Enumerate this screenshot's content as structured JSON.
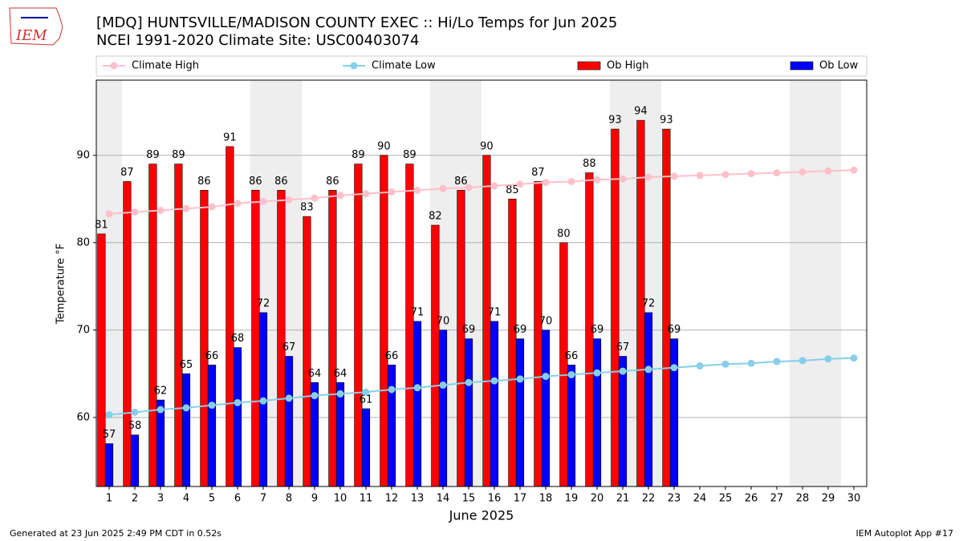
{
  "logo_text": "IEM",
  "footer_left": "Generated at 23 Jun 2025 2:49 PM CDT in 0.52s",
  "footer_right": "IEM Autoplot App #17",
  "chart_data": {
    "type": "bar",
    "title": "[MDQ] HUNTSVILLE/MADISON COUNTY EXEC :: Hi/Lo Temps for Jun 2025",
    "subtitle": "NCEI 1991-2020 Climate Site: USC00403074",
    "x_label": "June 2025",
    "y_label": "Temperature °F",
    "x": [
      1,
      2,
      3,
      4,
      5,
      6,
      7,
      8,
      9,
      10,
      11,
      12,
      13,
      14,
      15,
      16,
      17,
      18,
      19,
      20,
      21,
      22,
      23,
      24,
      25,
      26,
      27,
      28,
      29,
      30
    ],
    "xlim": [
      0.5,
      30.5
    ],
    "xticks": [
      1,
      2,
      3,
      4,
      5,
      6,
      7,
      8,
      9,
      10,
      11,
      12,
      13,
      14,
      15,
      16,
      17,
      18,
      19,
      20,
      21,
      22,
      23,
      24,
      25,
      26,
      27,
      28,
      29,
      30
    ],
    "ylim": [
      52.1,
      98.6
    ],
    "yticks": [
      60,
      70,
      80,
      90
    ],
    "grid": true,
    "legend_position": "top",
    "series": [
      {
        "name": "Climate High",
        "type": "line",
        "color": "#ffc0cb",
        "values": [
          83.3,
          83.5,
          83.7,
          83.9,
          84.1,
          84.5,
          84.7,
          84.9,
          85.1,
          85.4,
          85.6,
          85.8,
          86.0,
          86.2,
          86.3,
          86.5,
          86.7,
          86.9,
          87.0,
          87.2,
          87.3,
          87.5,
          87.6,
          87.7,
          87.8,
          87.9,
          88.0,
          88.1,
          88.2,
          88.3
        ]
      },
      {
        "name": "Climate Low",
        "type": "line",
        "color": "#87ceeb",
        "values": [
          60.3,
          60.6,
          60.9,
          61.1,
          61.4,
          61.7,
          61.9,
          62.2,
          62.5,
          62.7,
          62.9,
          63.2,
          63.4,
          63.7,
          64.0,
          64.2,
          64.4,
          64.7,
          64.9,
          65.1,
          65.3,
          65.5,
          65.7,
          65.9,
          66.1,
          66.2,
          66.4,
          66.5,
          66.7,
          66.8
        ]
      },
      {
        "name": "Ob High",
        "type": "bar",
        "color": "#ff0000",
        "values": [
          81,
          87,
          89,
          89,
          86,
          91,
          86,
          86,
          83,
          86,
          89,
          90,
          89,
          82,
          86,
          90,
          85,
          87,
          80,
          88,
          93,
          94,
          93,
          null,
          null,
          null,
          null,
          null,
          null,
          null
        ]
      },
      {
        "name": "Ob Low",
        "type": "bar",
        "color": "#0000ff",
        "values": [
          57,
          58,
          62,
          65,
          66,
          68,
          72,
          67,
          64,
          64,
          61,
          66,
          71,
          70,
          69,
          71,
          69,
          70,
          66,
          69,
          67,
          72,
          69,
          null,
          null,
          null,
          null,
          null,
          null,
          null
        ]
      }
    ]
  }
}
